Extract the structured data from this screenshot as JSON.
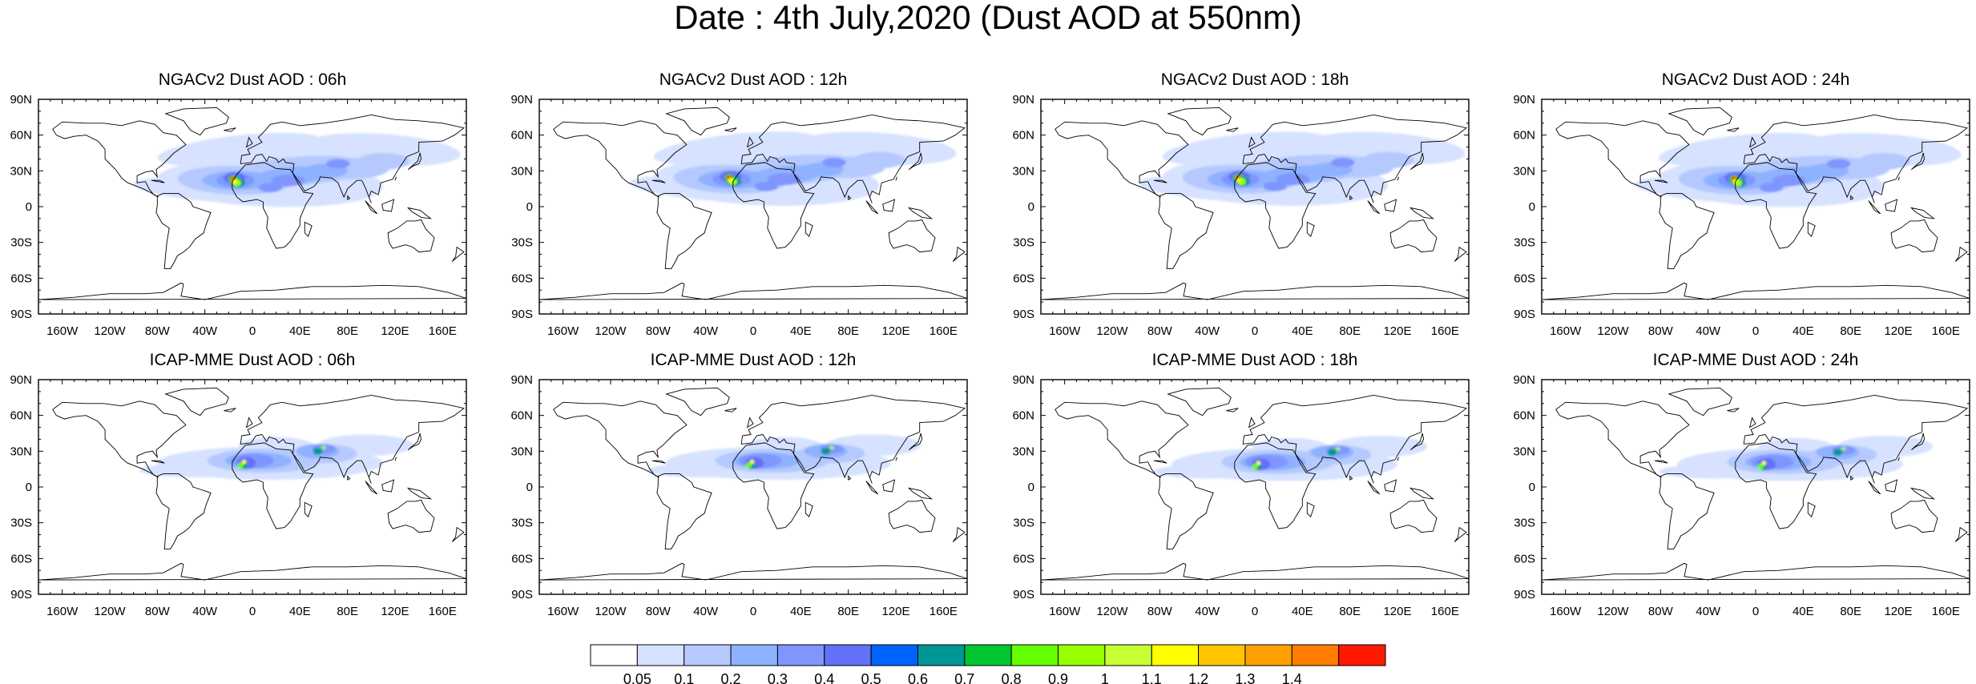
{
  "title": "Date : 4th July,2020 (Dust AOD at 550nm)",
  "panels": [
    {
      "title": "NGACv2 Dust AOD : 06h",
      "model": "NGACv2",
      "hour": "06h"
    },
    {
      "title": "NGACv2 Dust AOD : 12h",
      "model": "NGACv2",
      "hour": "12h"
    },
    {
      "title": "NGACv2 Dust AOD : 18h",
      "model": "NGACv2",
      "hour": "18h"
    },
    {
      "title": "NGACv2 Dust AOD : 24h",
      "model": "NGACv2",
      "hour": "24h"
    },
    {
      "title": "ICAP-MME Dust AOD : 06h",
      "model": "ICAP-MME",
      "hour": "06h"
    },
    {
      "title": "ICAP-MME Dust AOD : 12h",
      "model": "ICAP-MME",
      "hour": "12h"
    },
    {
      "title": "ICAP-MME Dust AOD : 18h",
      "model": "ICAP-MME",
      "hour": "18h"
    },
    {
      "title": "ICAP-MME Dust AOD : 24h",
      "model": "ICAP-MME",
      "hour": "24h"
    }
  ],
  "axes": {
    "lon_ticks": [
      {
        "value": -160,
        "label": "160W"
      },
      {
        "value": -120,
        "label": "120W"
      },
      {
        "value": -80,
        "label": "80W"
      },
      {
        "value": -40,
        "label": "40W"
      },
      {
        "value": 0,
        "label": "0"
      },
      {
        "value": 40,
        "label": "40E"
      },
      {
        "value": 80,
        "label": "80E"
      },
      {
        "value": 120,
        "label": "120E"
      },
      {
        "value": 160,
        "label": "160E"
      }
    ],
    "lat_ticks": [
      {
        "value": 90,
        "label": "90N"
      },
      {
        "value": 60,
        "label": "60N"
      },
      {
        "value": 30,
        "label": "30N"
      },
      {
        "value": 0,
        "label": "0"
      },
      {
        "value": -30,
        "label": "30S"
      },
      {
        "value": -60,
        "label": "60S"
      },
      {
        "value": -90,
        "label": "90S"
      }
    ]
  },
  "colorbar": {
    "labels": [
      "0.05",
      "0.1",
      "0.2",
      "0.3",
      "0.4",
      "0.5",
      "0.6",
      "0.7",
      "0.8",
      "0.9",
      "1",
      "1.1",
      "1.2",
      "1.3",
      "1.4"
    ],
    "colors": [
      "#ffffff",
      "#d6e2ff",
      "#b5c9ff",
      "#8eb2ff",
      "#7f96ff",
      "#6370f8",
      "#0063ff",
      "#009696",
      "#00c633",
      "#63ff00",
      "#96ff00",
      "#c6ff33",
      "#ffff00",
      "#ffc600",
      "#ffa000",
      "#ff7c00",
      "#ff1900"
    ]
  }
}
